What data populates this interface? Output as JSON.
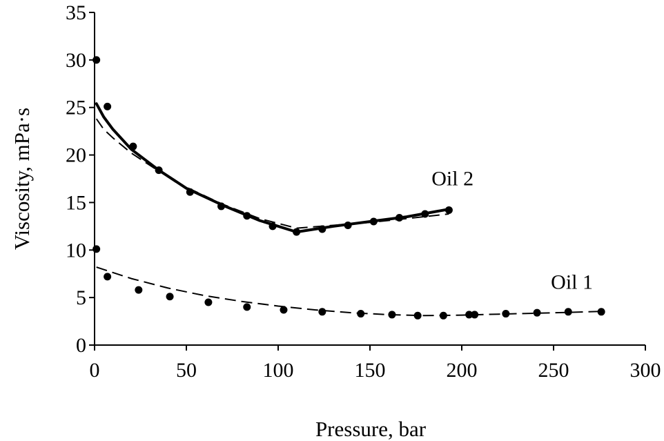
{
  "chart_data": {
    "type": "scatter",
    "title": "",
    "xlabel": "Pressure, bar",
    "ylabel": "Viscosity, mPa·s",
    "xlim": [
      0,
      300
    ],
    "ylim": [
      0,
      35
    ],
    "xticks": [
      "0",
      "50",
      "100",
      "150",
      "200",
      "250",
      "300"
    ],
    "yticks": [
      "0",
      "5",
      "10",
      "15",
      "20",
      "25",
      "30",
      "35"
    ],
    "grid": false,
    "legend": "none",
    "series": [
      {
        "name": "Oil 2",
        "kind": "points",
        "x": [
          1,
          7,
          21,
          35,
          52,
          69,
          83,
          97,
          110,
          124,
          138,
          152,
          166,
          180,
          193
        ],
        "y": [
          30.0,
          25.1,
          20.9,
          18.4,
          16.1,
          14.6,
          13.6,
          12.5,
          11.9,
          12.2,
          12.6,
          13.0,
          13.4,
          13.8,
          14.2
        ]
      },
      {
        "name": "Oil 2",
        "kind": "solid-line",
        "x": [
          1,
          5,
          10,
          20,
          35,
          50,
          70,
          90,
          110,
          130,
          150,
          170,
          193
        ],
        "y": [
          25.4,
          24.0,
          22.7,
          20.6,
          18.4,
          16.5,
          14.7,
          13.1,
          11.9,
          12.5,
          13.0,
          13.5,
          14.3
        ]
      },
      {
        "name": "Oil 2",
        "kind": "dashed-line",
        "x": [
          1,
          5,
          10,
          20,
          35,
          50,
          70,
          90,
          110,
          130,
          150,
          170,
          193
        ],
        "y": [
          23.8,
          22.7,
          21.8,
          20.2,
          18.3,
          16.6,
          14.8,
          13.3,
          12.3,
          12.6,
          12.9,
          13.3,
          13.8
        ]
      },
      {
        "name": "Oil 1",
        "kind": "points",
        "x": [
          1,
          7,
          24,
          41,
          62,
          83,
          103,
          124,
          145,
          162,
          176,
          190,
          204,
          207,
          224,
          241,
          258,
          276
        ],
        "y": [
          10.1,
          7.2,
          5.8,
          5.1,
          4.5,
          4.0,
          3.7,
          3.5,
          3.3,
          3.2,
          3.1,
          3.1,
          3.2,
          3.2,
          3.3,
          3.4,
          3.5,
          3.5
        ]
      },
      {
        "name": "Oil 1",
        "kind": "dashed-line",
        "x": [
          1,
          20,
          40,
          60,
          80,
          100,
          120,
          140,
          160,
          180,
          200,
          220,
          240,
          260,
          276
        ],
        "y": [
          8.2,
          7.0,
          6.0,
          5.2,
          4.6,
          4.1,
          3.7,
          3.4,
          3.2,
          3.1,
          3.15,
          3.25,
          3.35,
          3.45,
          3.55
        ]
      }
    ],
    "annotations": [
      {
        "text": "Oil 2",
        "x": 195,
        "y": 16.8
      },
      {
        "text": "Oil 1",
        "x": 260,
        "y": 5.9
      }
    ]
  }
}
